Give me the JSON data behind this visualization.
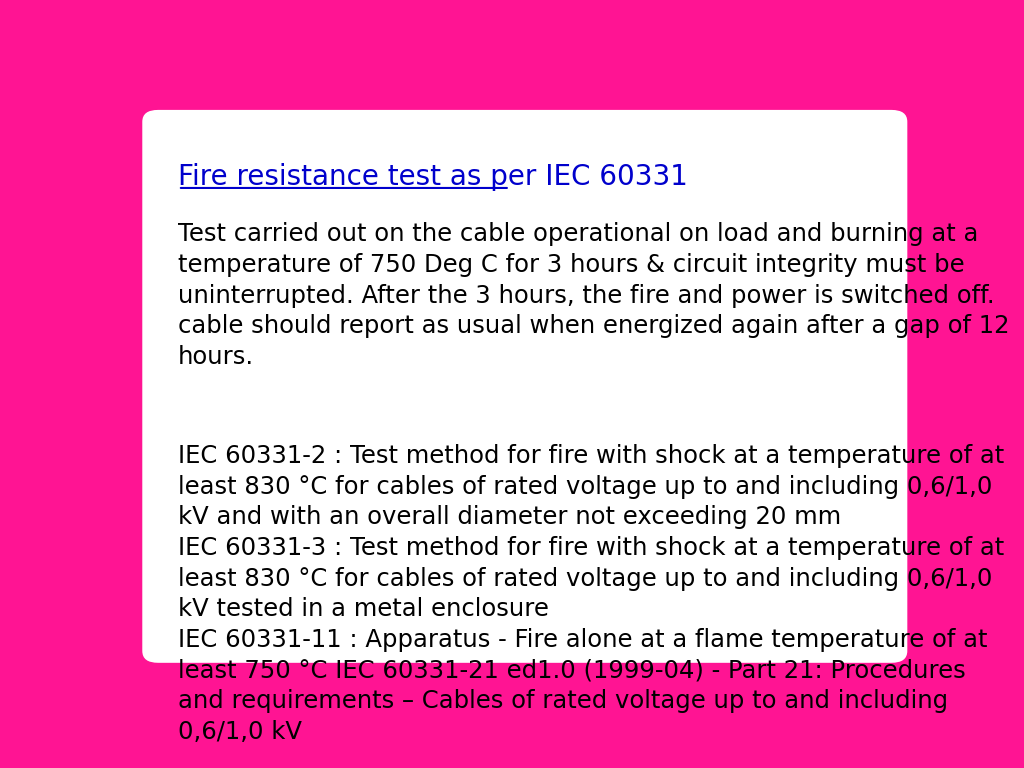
{
  "background_color": "#FF1493",
  "card_color": "#FFFFFF",
  "title": "Fire resistance test as per IEC 60331",
  "title_color": "#0000CC",
  "title_fontsize": 20,
  "body_fontsize": 17.5,
  "body_color": "#000000",
  "font_family": "DejaVu Sans",
  "paragraph1": "Test carried out on the cable operational on load and burning at a\ntemperature of 750 Deg C for 3 hours & circuit integrity must be\nuninterrupted. After the 3 hours, the fire and power is switched off.\ncable should report as usual when energized again after a gap of 12\nhours.",
  "paragraph2": "IEC 60331-2 : Test method for fire with shock at a temperature of at\nleast 830 °C for cables of rated voltage up to and including 0,6/1,0\nkV and with an overall diameter not exceeding 20 mm\nIEC 60331-3 : Test method for fire with shock at a temperature of at\nleast 830 °C for cables of rated voltage up to and including 0,6/1,0\nkV tested in a metal enclosure\nIEC 60331-11 : Apparatus - Fire alone at a flame temperature of at\nleast 750 °C IEC 60331-21 ed1.0 (1999-04) - Part 21: Procedures\nand requirements – Cables of rated voltage up to and including\n0,6/1,0 kV"
}
